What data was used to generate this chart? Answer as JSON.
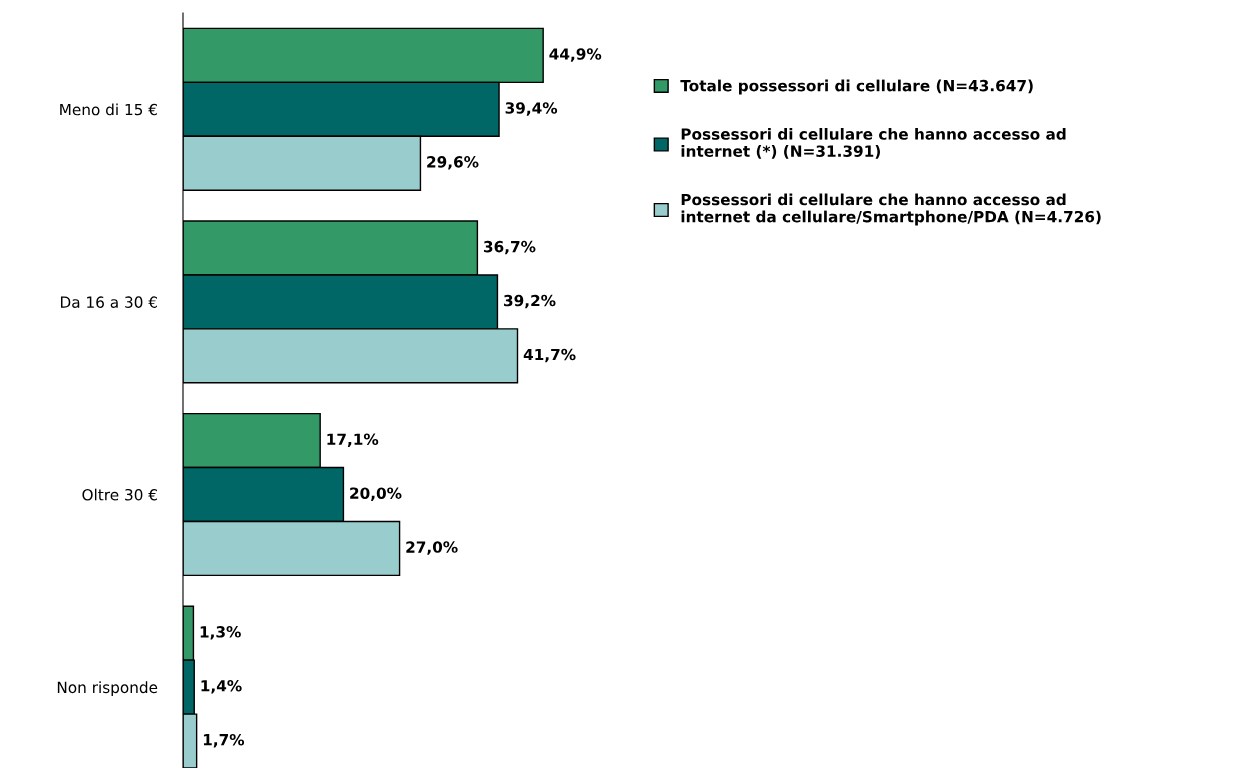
{
  "chart_data": {
    "type": "bar",
    "orientation": "horizontal",
    "categories": [
      "Meno di 15 €",
      "Da 16 a 30 €",
      "Oltre 30 €",
      "Non risponde"
    ],
    "series": [
      {
        "name": "Totale possessori di cellulare (N=43.647)",
        "color": "#339966",
        "values": [
          44.9,
          36.7,
          17.1,
          1.3
        ],
        "value_labels": [
          "44,9%",
          "36,7%",
          "17,1%",
          "1,3%"
        ]
      },
      {
        "name": "Possessori di cellulare che hanno accesso ad\ninternet (*) (N=31.391)",
        "color": "#006666",
        "values": [
          39.4,
          39.2,
          20.0,
          1.4
        ],
        "value_labels": [
          "39,4%",
          "39,2%",
          "20,0%",
          "1,4%"
        ]
      },
      {
        "name": "Possessori di cellulare che hanno accesso ad\ninternet da cellulare/Smartphone/PDA (N=4.726)",
        "color": "#99cccc",
        "values": [
          29.6,
          41.7,
          27.0,
          1.7
        ],
        "value_labels": [
          "29,6%",
          "41,7%",
          "27,0%",
          "1,7%"
        ]
      }
    ],
    "legend": "right",
    "grid": false
  }
}
